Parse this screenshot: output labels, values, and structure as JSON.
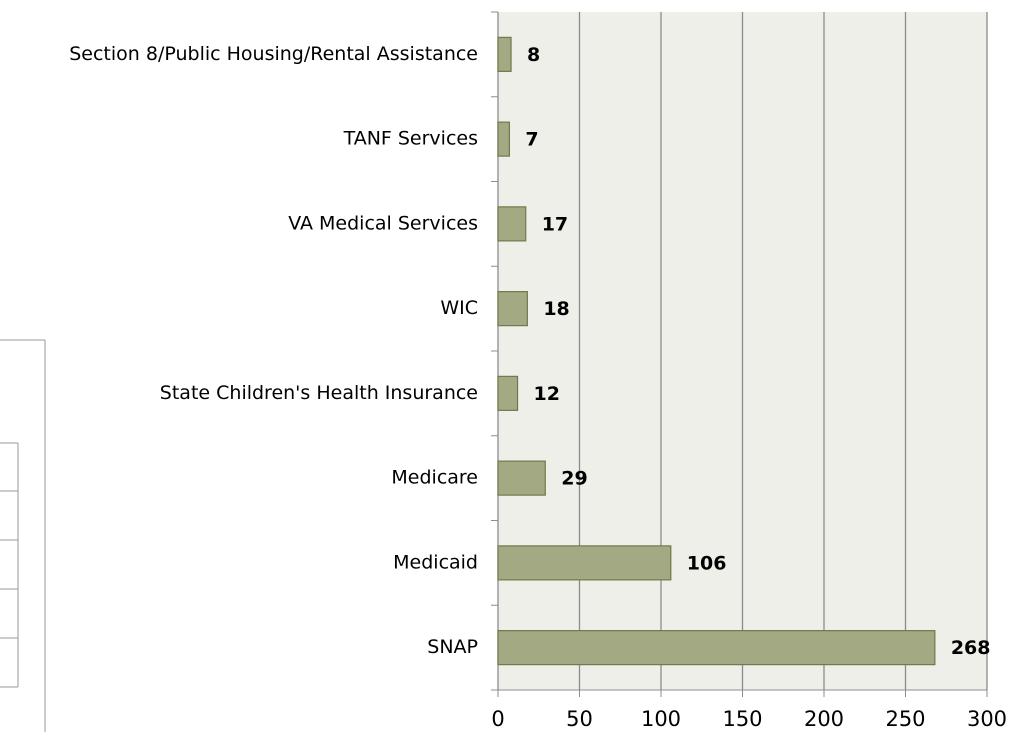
{
  "chart_data": {
    "type": "bar",
    "orientation": "horizontal",
    "categories": [
      "Section 8/Public Housing/Rental Assistance",
      "TANF Services",
      "VA Medical Services",
      "WIC",
      "State Children's Health Insurance",
      "Medicare",
      "Medicaid",
      "SNAP"
    ],
    "values": [
      8,
      7,
      17,
      18,
      12,
      29,
      106,
      268
    ],
    "color": "#a3a982",
    "xlim": [
      0,
      300
    ],
    "xticks": [
      0,
      50,
      100,
      150,
      200,
      250,
      300
    ],
    "grid": true
  }
}
